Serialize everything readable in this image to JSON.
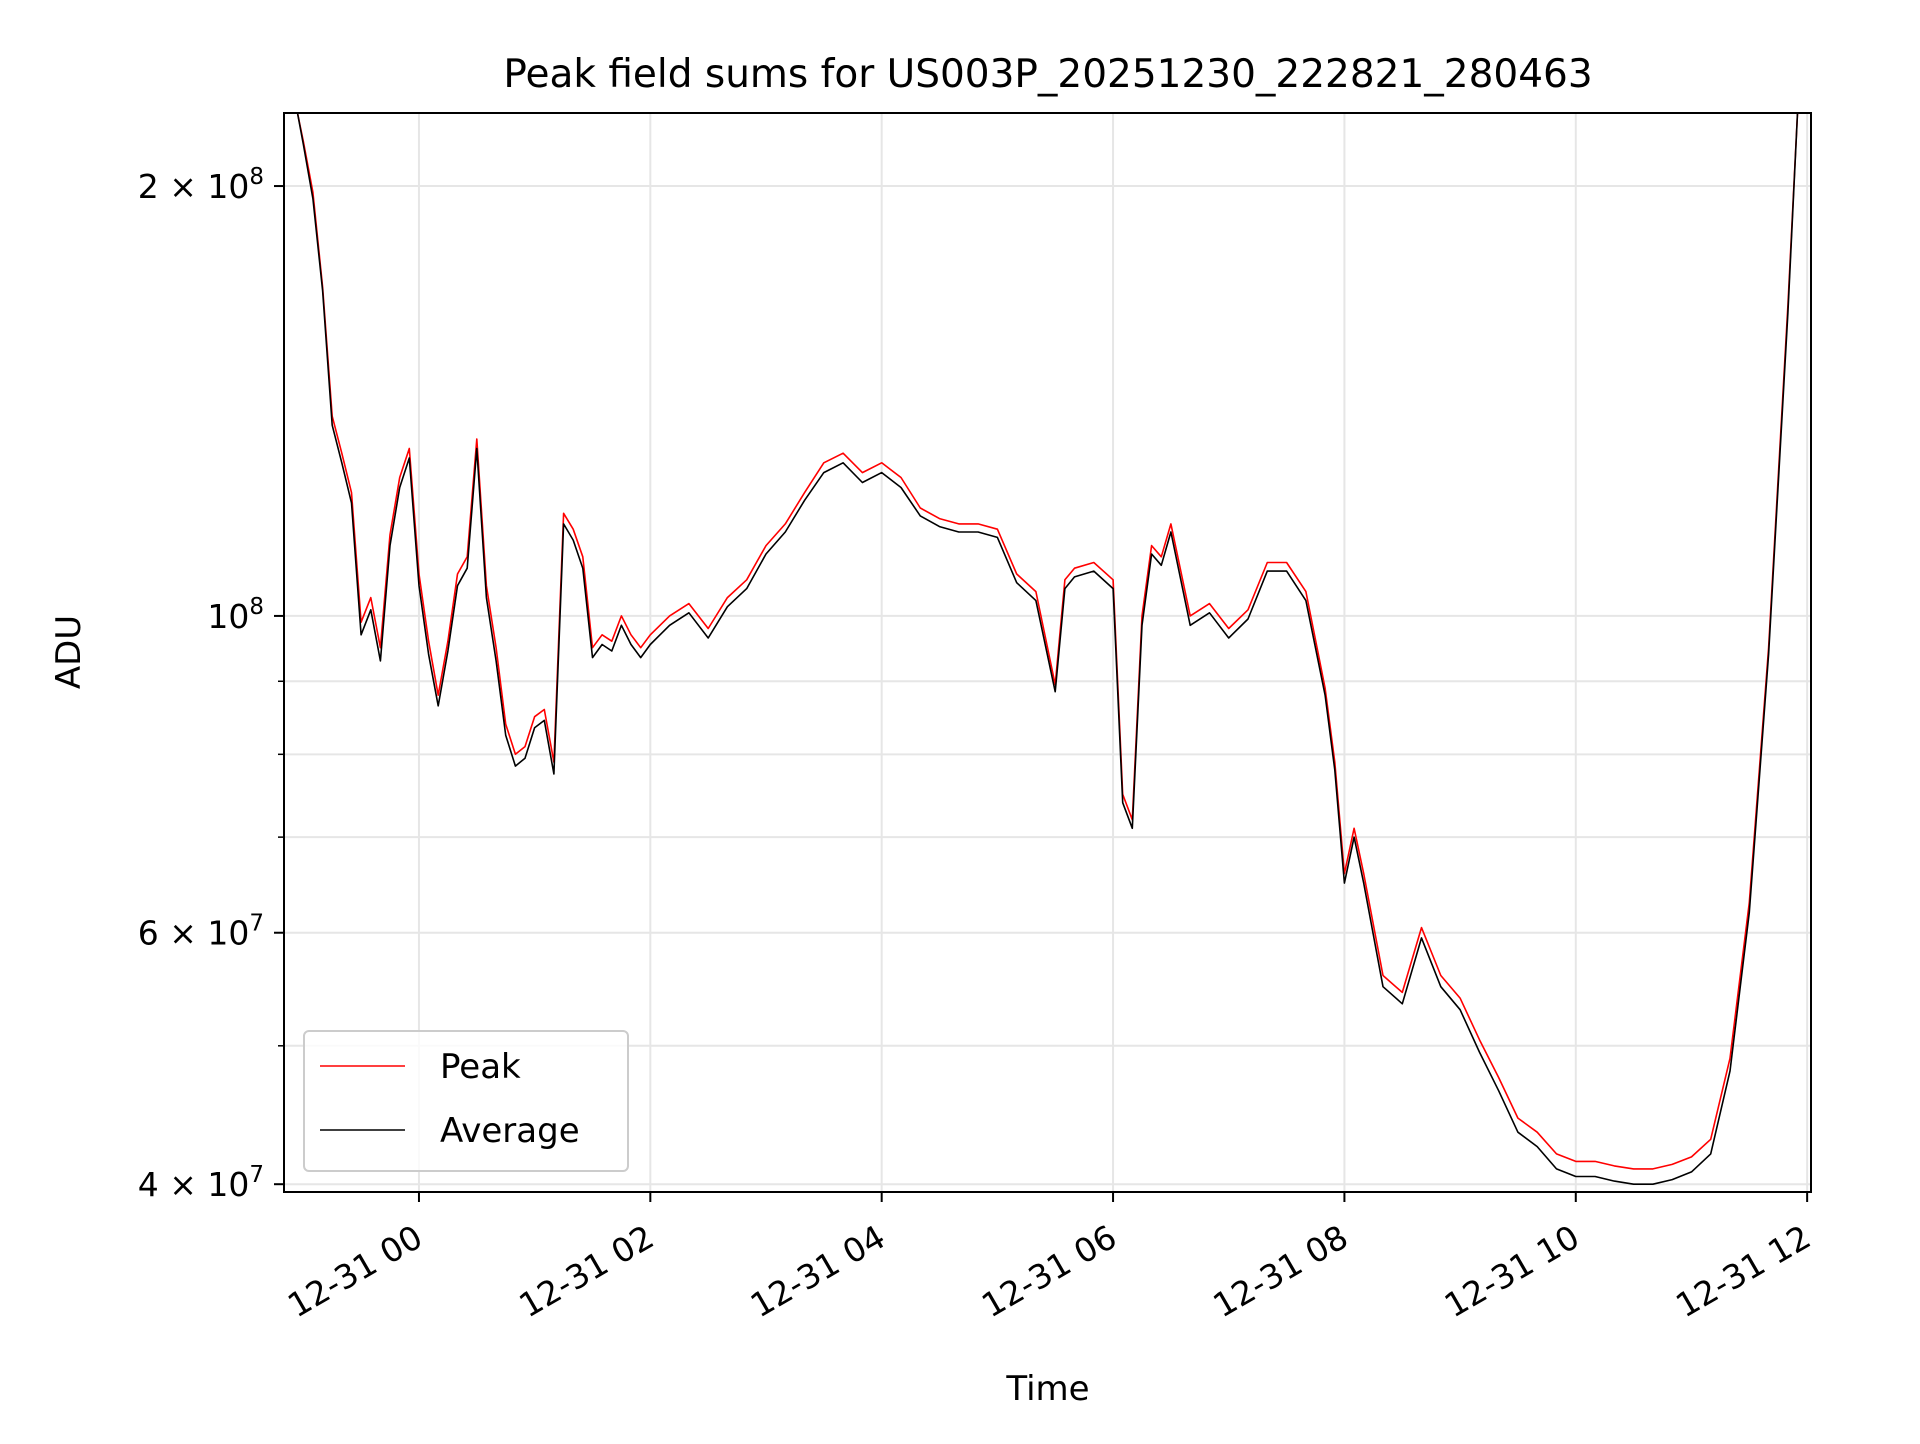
{
  "chart_data": {
    "type": "line",
    "title": "Peak field sums for US003P_20251230_222821_280463",
    "xlabel": "Time",
    "ylabel": "ADU",
    "yscale": "log",
    "xlim": [
      "12-30 22:50",
      "12-31 12:02"
    ],
    "ylim": [
      39500000,
      225000000
    ],
    "grid": true,
    "legend_position": "lower-left",
    "x_ticks": [
      {
        "value": "12-31 00:00",
        "label": "12-31 00"
      },
      {
        "value": "12-31 02:00",
        "label": "12-31 02"
      },
      {
        "value": "12-31 04:00",
        "label": "12-31 04"
      },
      {
        "value": "12-31 06:00",
        "label": "12-31 06"
      },
      {
        "value": "12-31 08:00",
        "label": "12-31 08"
      },
      {
        "value": "12-31 10:00",
        "label": "12-31 10"
      },
      {
        "value": "12-31 12:00",
        "label": "12-31 12"
      }
    ],
    "y_ticks": [
      {
        "value": 200000000,
        "mantissa": "2",
        "exponent": "8"
      },
      {
        "value": 100000000,
        "mantissa": "",
        "exponent": "8"
      },
      {
        "value": 60000000,
        "mantissa": "6",
        "exponent": "7"
      },
      {
        "value": 40000000,
        "mantissa": "4",
        "exponent": "7"
      }
    ],
    "y_minor_ticks": [
      300000000,
      90000000,
      80000000,
      70000000,
      50000000
    ],
    "series": [
      {
        "name": "Peak",
        "color": "#ff0000",
        "x": [
          "12-30 22:57",
          "12-30 23:00",
          "12-30 23:05",
          "12-30 23:10",
          "12-30 23:15",
          "12-30 23:20",
          "12-30 23:25",
          "12-30 23:30",
          "12-30 23:35",
          "12-30 23:40",
          "12-30 23:45",
          "12-30 23:50",
          "12-30 23:55",
          "12-31 00:00",
          "12-31 00:05",
          "12-31 00:10",
          "12-31 00:15",
          "12-31 00:20",
          "12-31 00:25",
          "12-31 00:30",
          "12-31 00:35",
          "12-31 00:40",
          "12-31 00:45",
          "12-31 00:50",
          "12-31 00:55",
          "12-31 01:00",
          "12-31 01:05",
          "12-31 01:10",
          "12-31 01:15",
          "12-31 01:20",
          "12-31 01:25",
          "12-31 01:30",
          "12-31 01:35",
          "12-31 01:40",
          "12-31 01:45",
          "12-31 01:50",
          "12-31 01:55",
          "12-31 02:00",
          "12-31 02:10",
          "12-31 02:20",
          "12-31 02:30",
          "12-31 02:40",
          "12-31 02:50",
          "12-31 03:00",
          "12-31 03:10",
          "12-31 03:20",
          "12-31 03:30",
          "12-31 03:40",
          "12-31 03:50",
          "12-31 04:00",
          "12-31 04:10",
          "12-31 04:20",
          "12-31 04:30",
          "12-31 04:40",
          "12-31 04:50",
          "12-31 05:00",
          "12-31 05:10",
          "12-31 05:20",
          "12-31 05:30",
          "12-31 05:35",
          "12-31 05:40",
          "12-31 05:50",
          "12-31 06:00",
          "12-31 06:05",
          "12-31 06:10",
          "12-31 06:15",
          "12-31 06:20",
          "12-31 06:25",
          "12-31 06:30",
          "12-31 06:40",
          "12-31 06:50",
          "12-31 07:00",
          "12-31 07:10",
          "12-31 07:20",
          "12-31 07:30",
          "12-31 07:40",
          "12-31 07:50",
          "12-31 07:55",
          "12-31 08:00",
          "12-31 08:05",
          "12-31 08:10",
          "12-31 08:20",
          "12-31 08:30",
          "12-31 08:40",
          "12-31 08:50",
          "12-31 09:00",
          "12-31 09:10",
          "12-31 09:20",
          "12-31 09:30",
          "12-31 09:40",
          "12-31 09:50",
          "12-31 10:00",
          "12-31 10:10",
          "12-31 10:20",
          "12-31 10:30",
          "12-31 10:40",
          "12-31 10:50",
          "12-31 11:00",
          "12-31 11:10",
          "12-31 11:20",
          "12-31 11:30",
          "12-31 11:40",
          "12-31 11:50",
          "12-31 11:55"
        ],
        "y": [
          225000000,
          215000000,
          198000000,
          170000000,
          138000000,
          130000000,
          122000000,
          99000000,
          103000000,
          95000000,
          114000000,
          125000000,
          131000000,
          107000000,
          96000000,
          88000000,
          96000000,
          107000000,
          110000000,
          133000000,
          105000000,
          95000000,
          84000000,
          80000000,
          81000000,
          85000000,
          86000000,
          79000000,
          118000000,
          115000000,
          110000000,
          95000000,
          97000000,
          96000000,
          100000000,
          97000000,
          95000000,
          97000000,
          100000000,
          102000000,
          98000000,
          103000000,
          106000000,
          112000000,
          116000000,
          122000000,
          128000000,
          130000000,
          126000000,
          128000000,
          125000000,
          119000000,
          117000000,
          116000000,
          116000000,
          115000000,
          107000000,
          104000000,
          89500000,
          106000000,
          108000000,
          109000000,
          106000000,
          75000000,
          72000000,
          100000000,
          112000000,
          110000000,
          116000000,
          100000000,
          102000000,
          98000000,
          101000000,
          109000000,
          109000000,
          104000000,
          89000000,
          79000000,
          66000000,
          71000000,
          66000000,
          56000000,
          54500000,
          60500000,
          56000000,
          54000000,
          50500000,
          47500000,
          44500000,
          43500000,
          42000000,
          41500000,
          41500000,
          41200000,
          41000000,
          41000000,
          41300000,
          41800000,
          43000000,
          49000000,
          63000000,
          95000000,
          165000000,
          225000000
        ]
      },
      {
        "name": "Average",
        "color": "#000000",
        "x": [
          "12-30 22:57",
          "12-30 23:00",
          "12-30 23:05",
          "12-30 23:10",
          "12-30 23:15",
          "12-30 23:20",
          "12-30 23:25",
          "12-30 23:30",
          "12-30 23:35",
          "12-30 23:40",
          "12-30 23:45",
          "12-30 23:50",
          "12-30 23:55",
          "12-31 00:00",
          "12-31 00:05",
          "12-31 00:10",
          "12-31 00:15",
          "12-31 00:20",
          "12-31 00:25",
          "12-31 00:30",
          "12-31 00:35",
          "12-31 00:40",
          "12-31 00:45",
          "12-31 00:50",
          "12-31 00:55",
          "12-31 01:00",
          "12-31 01:05",
          "12-31 01:10",
          "12-31 01:15",
          "12-31 01:20",
          "12-31 01:25",
          "12-31 01:30",
          "12-31 01:35",
          "12-31 01:40",
          "12-31 01:45",
          "12-31 01:50",
          "12-31 01:55",
          "12-31 02:00",
          "12-31 02:10",
          "12-31 02:20",
          "12-31 02:30",
          "12-31 02:40",
          "12-31 02:50",
          "12-31 03:00",
          "12-31 03:10",
          "12-31 03:20",
          "12-31 03:30",
          "12-31 03:40",
          "12-31 03:50",
          "12-31 04:00",
          "12-31 04:10",
          "12-31 04:20",
          "12-31 04:30",
          "12-31 04:40",
          "12-31 04:50",
          "12-31 05:00",
          "12-31 05:10",
          "12-31 05:20",
          "12-31 05:30",
          "12-31 05:35",
          "12-31 05:40",
          "12-31 05:50",
          "12-31 06:00",
          "12-31 06:05",
          "12-31 06:10",
          "12-31 06:15",
          "12-31 06:20",
          "12-31 06:25",
          "12-31 06:30",
          "12-31 06:40",
          "12-31 06:50",
          "12-31 07:00",
          "12-31 07:10",
          "12-31 07:20",
          "12-31 07:30",
          "12-31 07:40",
          "12-31 07:50",
          "12-31 07:55",
          "12-31 08:00",
          "12-31 08:05",
          "12-31 08:10",
          "12-31 08:20",
          "12-31 08:30",
          "12-31 08:40",
          "12-31 08:50",
          "12-31 09:00",
          "12-31 09:10",
          "12-31 09:20",
          "12-31 09:30",
          "12-31 09:40",
          "12-31 09:50",
          "12-31 10:00",
          "12-31 10:10",
          "12-31 10:20",
          "12-31 10:30",
          "12-31 10:40",
          "12-31 10:50",
          "12-31 11:00",
          "12-31 11:10",
          "12-31 11:20",
          "12-31 11:30",
          "12-31 11:40",
          "12-31 11:50",
          "12-31 11:55"
        ],
        "y": [
          225000000,
          214000000,
          196000000,
          169000000,
          136000000,
          128000000,
          120000000,
          97000000,
          101000000,
          93000000,
          112000000,
          123000000,
          129000000,
          105000000,
          94000000,
          86500000,
          94500000,
          105000000,
          108000000,
          131000000,
          103000000,
          93000000,
          82500000,
          78500000,
          79500000,
          83500000,
          84500000,
          77500000,
          116000000,
          113000000,
          108000000,
          93500000,
          95500000,
          94500000,
          98500000,
          95500000,
          93500000,
          95500000,
          98500000,
          100500000,
          96500000,
          101500000,
          104500000,
          110500000,
          114500000,
          120500000,
          126000000,
          128000000,
          124000000,
          126000000,
          123000000,
          117500000,
          115500000,
          114500000,
          114500000,
          113500000,
          105500000,
          102500000,
          88500000,
          104500000,
          106500000,
          107500000,
          104500000,
          74000000,
          71000000,
          98500000,
          110500000,
          108500000,
          114500000,
          98500000,
          100500000,
          96500000,
          99500000,
          107500000,
          107500000,
          102500000,
          88000000,
          78000000,
          65000000,
          70000000,
          65000000,
          55000000,
          53500000,
          59500000,
          55000000,
          53000000,
          49500000,
          46500000,
          43500000,
          42500000,
          41000000,
          40500000,
          40500000,
          40200000,
          40000000,
          40000000,
          40300000,
          40800000,
          42000000,
          48000000,
          62000000,
          94000000,
          163000000,
          225000000
        ]
      }
    ]
  }
}
